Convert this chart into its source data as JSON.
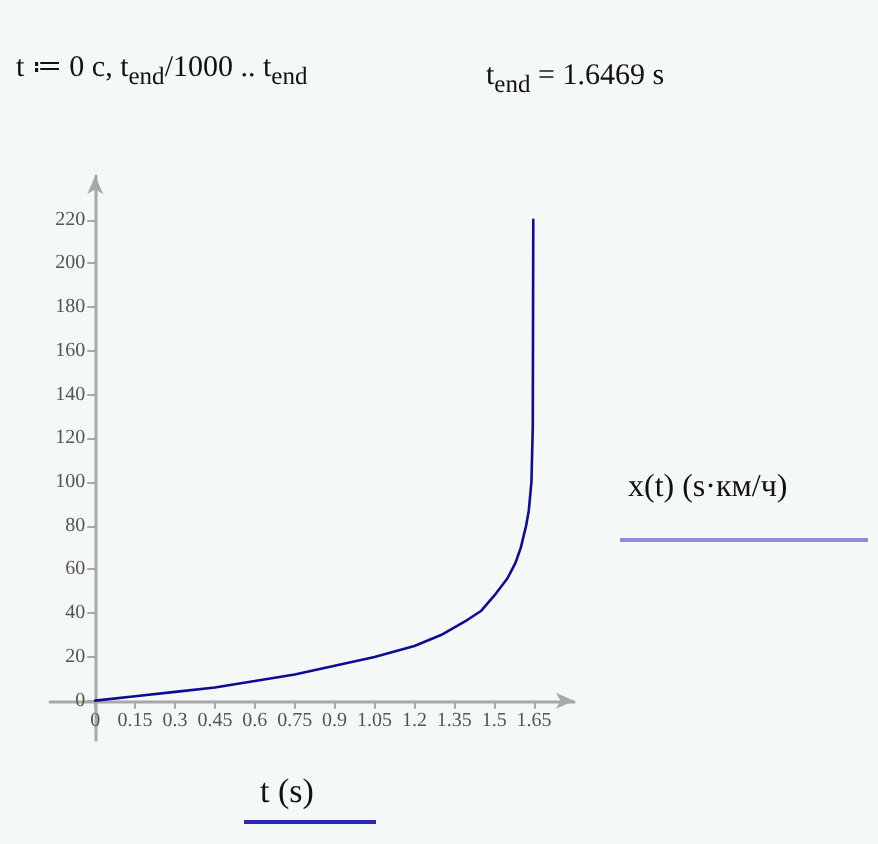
{
  "chart_data": {
    "type": "line",
    "annotations": [
      "t ≔ 0 c, t$_{end}$/1000 .. t$_{end}$",
      "t$_{end}$ = 1.6469 s"
    ],
    "xlabel": "t (s)",
    "ylabel": "x(t) (s·км/ч)",
    "x": [
      0,
      0.15,
      0.3,
      0.45,
      0.6,
      0.75,
      0.9,
      1.05,
      1.2,
      1.3,
      1.4,
      1.45,
      1.5,
      1.55,
      1.58,
      1.6,
      1.62,
      1.63,
      1.64,
      1.645,
      1.6469
    ],
    "series": [
      {
        "color": "#0c0c94",
        "values": [
          0,
          2,
          4,
          6,
          9,
          12,
          16,
          20,
          25,
          30,
          37,
          41,
          48,
          56,
          63,
          70,
          80,
          87,
          100,
          125,
          220
        ]
      }
    ],
    "xlim": [
      -0.17,
      1.8
    ],
    "ylim": [
      -18,
      240
    ],
    "xticks": [
      0,
      0.15,
      0.3,
      0.45,
      0.6,
      0.75,
      0.9,
      1.05,
      1.2,
      1.35,
      1.5,
      1.65
    ],
    "yticks": [
      0,
      20,
      40,
      60,
      80,
      100,
      120,
      140,
      160,
      180,
      200,
      220
    ],
    "grid": false,
    "marker": "none"
  }
}
